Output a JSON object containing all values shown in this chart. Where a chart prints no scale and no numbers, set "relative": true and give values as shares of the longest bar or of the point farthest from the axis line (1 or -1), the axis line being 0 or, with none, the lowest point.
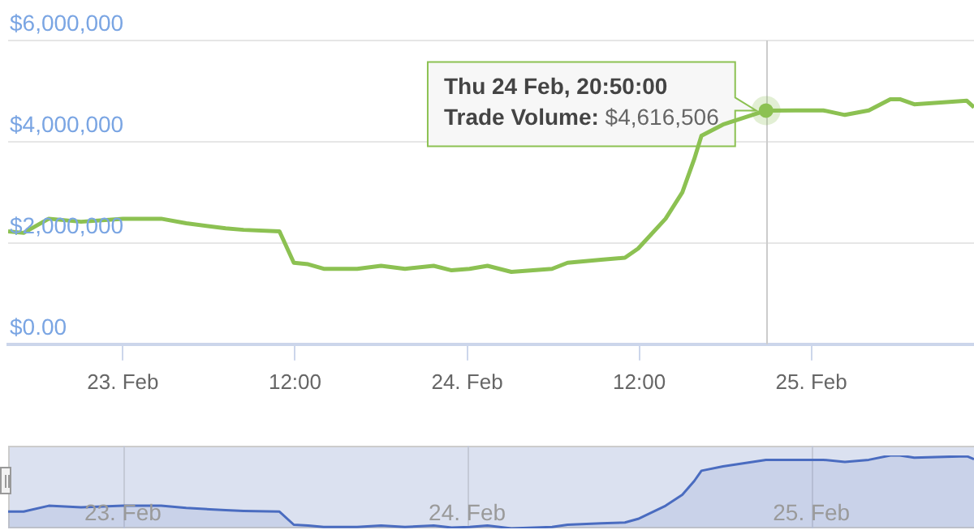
{
  "chart_data": [
    {
      "type": "line",
      "color": "#8cc152",
      "marker": "none",
      "grid": "y",
      "x": [
        "--02-22T16:00",
        "--02-22T17:05",
        "--02-22T18:50",
        "--02-22T21:05",
        "--02-23T00:00",
        "--02-23T02:40",
        "--02-23T04:25",
        "--02-23T07:10",
        "--02-23T08:25",
        "--02-23T10:55",
        "--02-23T11:55",
        "--02-23T12:55",
        "--02-23T14:00",
        "--02-23T16:20",
        "--02-23T18:00",
        "--02-23T19:40",
        "--02-23T21:40",
        "--02-23T22:55",
        "--02-24T00:10",
        "--02-24T01:25",
        "--02-24T03:05",
        "--02-24T05:55",
        "--02-24T07:00",
        "--02-24T09:20",
        "--02-24T11:00",
        "--02-24T11:55",
        "--02-24T13:50",
        "--02-24T15:00",
        "--02-24T15:50",
        "--02-24T16:20",
        "--02-24T17:50",
        "--02-24T20:50",
        "--02-24T22:55",
        "--02-25T00:50",
        "--02-25T02:20",
        "--02-25T04:00",
        "--02-25T05:30",
        "--02-25T06:10",
        "--02-25T07:10",
        "--02-25T10:50",
        "--02-25T11:20"
      ],
      "values": [
        2230000,
        2200000,
        2480000,
        2420000,
        2480000,
        2480000,
        2390000,
        2290000,
        2260000,
        2230000,
        1610000,
        1580000,
        1490000,
        1490000,
        1550000,
        1490000,
        1550000,
        1460000,
        1490000,
        1550000,
        1430000,
        1490000,
        1610000,
        1670000,
        1710000,
        1890000,
        2480000,
        3000000,
        3660000,
        4120000,
        4340000,
        4616506,
        4620000,
        4620000,
        4530000,
        4620000,
        4840000,
        4840000,
        4740000,
        4810000,
        4680000
      ],
      "xlim": [
        "--02-22T16:00",
        "--02-25T11:20"
      ],
      "xticks": [
        {
          "value": "--02-23",
          "label": "23. Feb"
        },
        {
          "value": "--02-23T12:00",
          "label": "12:00"
        },
        {
          "value": "--02-24",
          "label": "24. Feb"
        },
        {
          "value": "--02-24T12:00",
          "label": "12:00"
        },
        {
          "value": "--02-25",
          "label": "25. Feb"
        }
      ],
      "ylim": [
        0,
        6000000
      ],
      "yticks": [
        {
          "value": 0,
          "label": "$0.00"
        },
        {
          "value": 2000000,
          "label": "$2,000,000"
        },
        {
          "value": 4000000,
          "label": "$4,000,000"
        },
        {
          "value": 6000000,
          "label": "$6,000,000"
        }
      ],
      "ref_lines": [
        {
          "axis": "x",
          "value": "--02-24T20:50",
          "color": "#cccccc"
        }
      ],
      "annotations": [
        {
          "text": "Thu 24 Feb, 20:50:00\nTrade Volume: $4,616,506",
          "x": "--02-24T20:50",
          "y": 4616506
        }
      ]
    },
    {
      "type": "area",
      "color": "#4a6cc0",
      "relative": true,
      "grid": "x",
      "x": [
        "--02-22T16:00",
        "--02-22T17:05",
        "--02-22T18:50",
        "--02-22T21:05",
        "--02-23T00:00",
        "--02-23T02:40",
        "--02-23T04:25",
        "--02-23T07:10",
        "--02-23T08:25",
        "--02-23T10:55",
        "--02-23T11:55",
        "--02-23T12:55",
        "--02-23T14:00",
        "--02-23T16:20",
        "--02-23T18:00",
        "--02-23T19:40",
        "--02-23T21:40",
        "--02-23T22:55",
        "--02-24T00:10",
        "--02-24T01:25",
        "--02-24T03:05",
        "--02-24T05:55",
        "--02-24T07:00",
        "--02-24T09:20",
        "--02-24T11:00",
        "--02-24T11:55",
        "--02-24T13:50",
        "--02-24T15:00",
        "--02-24T15:50",
        "--02-24T16:20",
        "--02-24T17:50",
        "--02-24T20:50",
        "--02-24T22:55",
        "--02-25T00:50",
        "--02-25T02:20",
        "--02-25T04:00",
        "--02-25T05:30",
        "--02-25T06:10",
        "--02-25T07:10",
        "--02-25T10:50",
        "--02-25T11:20"
      ],
      "values": [
        0.23,
        0.23,
        0.31,
        0.29,
        0.31,
        0.31,
        0.28,
        0.25,
        0.24,
        0.23,
        0.05,
        0.04,
        0.02,
        0.02,
        0.04,
        0.02,
        0.04,
        0.01,
        0.02,
        0.04,
        0,
        0.02,
        0.05,
        0.07,
        0.08,
        0.13,
        0.31,
        0.46,
        0.65,
        0.79,
        0.85,
        0.94,
        0.94,
        0.94,
        0.91,
        0.94,
        1,
        1,
        0.97,
        0.99,
        0.95
      ],
      "xlim": [
        "--02-22T16:00",
        "--02-25T11:20"
      ],
      "xticks": [
        {
          "value": "--02-23",
          "label": "23. Feb"
        },
        {
          "value": "--02-24",
          "label": "24. Feb"
        },
        {
          "value": "--02-25",
          "label": "25. Feb"
        }
      ]
    }
  ]
}
